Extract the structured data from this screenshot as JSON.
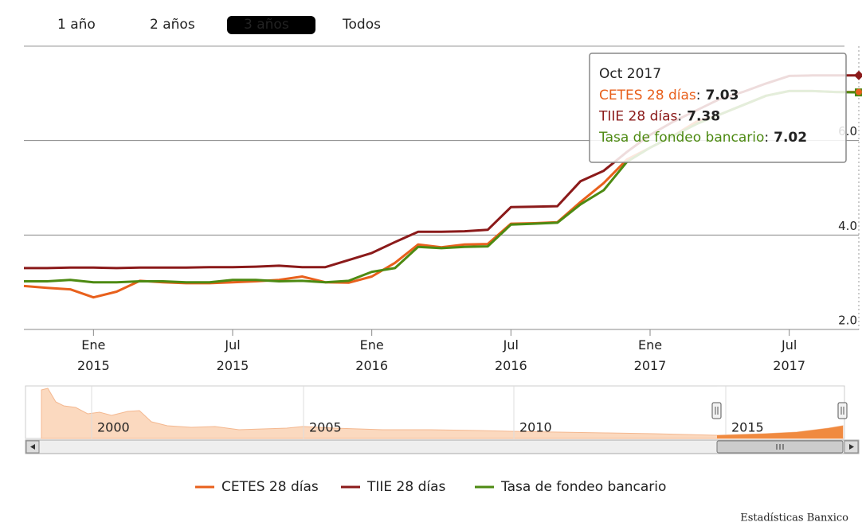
{
  "range_selector": {
    "buttons": [
      "1 año",
      "2 años",
      "3 años",
      "Todos"
    ],
    "selected": 2
  },
  "chart_data": {
    "type": "line",
    "x": [
      "2014-10",
      "2014-11",
      "2014-12",
      "2015-01",
      "2015-02",
      "2015-03",
      "2015-04",
      "2015-05",
      "2015-06",
      "2015-07",
      "2015-08",
      "2015-09",
      "2015-10",
      "2015-11",
      "2015-12",
      "2016-01",
      "2016-02",
      "2016-03",
      "2016-04",
      "2016-05",
      "2016-06",
      "2016-07",
      "2016-08",
      "2016-09",
      "2016-10",
      "2016-11",
      "2016-12",
      "2017-01",
      "2017-02",
      "2017-03",
      "2017-04",
      "2017-05",
      "2017-06",
      "2017-07",
      "2017-08",
      "2017-09",
      "2017-10"
    ],
    "series": [
      {
        "name": "CETES 28 días",
        "color": "#e8601c",
        "values": [
          2.92,
          2.88,
          2.85,
          2.68,
          2.8,
          3.03,
          3.0,
          2.98,
          2.98,
          3.0,
          3.02,
          3.05,
          3.12,
          3.0,
          2.99,
          3.12,
          3.41,
          3.8,
          3.74,
          3.8,
          3.81,
          4.24,
          4.25,
          4.27,
          4.7,
          5.1,
          5.6,
          5.85,
          6.1,
          6.4,
          6.55,
          6.75,
          6.95,
          7.05,
          7.05,
          7.03,
          7.03
        ]
      },
      {
        "name": "TIIE 28 días",
        "color": "#8b1a1a",
        "values": [
          3.3,
          3.3,
          3.31,
          3.31,
          3.3,
          3.31,
          3.31,
          3.31,
          3.32,
          3.32,
          3.33,
          3.35,
          3.32,
          3.32,
          3.47,
          3.62,
          3.85,
          4.07,
          4.07,
          4.08,
          4.11,
          4.59,
          4.6,
          4.61,
          5.14,
          5.36,
          5.76,
          6.12,
          6.4,
          6.64,
          6.88,
          7.03,
          7.21,
          7.37,
          7.38,
          7.38,
          7.38
        ]
      },
      {
        "name": "Tasa de fondeo bancario",
        "color": "#4d8a12",
        "values": [
          3.02,
          3.02,
          3.05,
          3.0,
          3.0,
          3.02,
          3.02,
          3.0,
          3.0,
          3.05,
          3.05,
          3.02,
          3.03,
          3.0,
          3.03,
          3.22,
          3.3,
          3.75,
          3.72,
          3.75,
          3.76,
          4.22,
          4.24,
          4.26,
          4.65,
          4.95,
          5.55,
          5.85,
          6.1,
          6.35,
          6.55,
          6.75,
          6.95,
          7.05,
          7.05,
          7.03,
          7.02
        ]
      }
    ],
    "xlim": [
      "2014-10",
      "2017-10"
    ],
    "xticks": [
      {
        "value": "2015-01",
        "label": "Ene 2015"
      },
      {
        "value": "2015-07",
        "label": "Jul 2015"
      },
      {
        "value": "2016-01",
        "label": "Ene 2016"
      },
      {
        "value": "2016-07",
        "label": "Jul 2016"
      },
      {
        "value": "2017-01",
        "label": "Ene 2017"
      },
      {
        "value": "2017-07",
        "label": "Jul 2017"
      }
    ],
    "ylim": [
      2,
      8
    ],
    "yticks": [
      {
        "value": 2,
        "label": "2.0"
      },
      {
        "value": 4,
        "label": "4.0"
      },
      {
        "value": 6,
        "label": "6.0"
      }
    ],
    "grid": true,
    "tooltip": {
      "header": "Oct 2017",
      "separator": ":",
      "index": 36
    },
    "legend": "bottom"
  },
  "navigator": {
    "labels": [
      "2000",
      "2005",
      "2010",
      "2015"
    ]
  },
  "credit": "Estadísticas Banxico"
}
